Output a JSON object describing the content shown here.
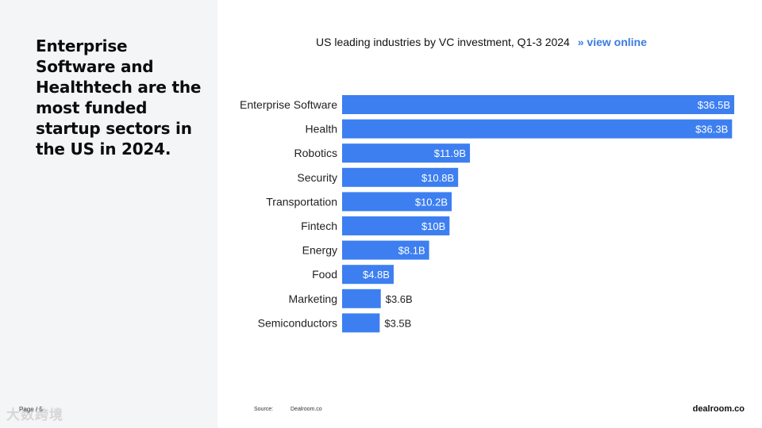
{
  "slide": {
    "headline": "Enterprise Software and Healthtech are the most funded startup sectors in the US in 2024.",
    "page_label": "Page / 5",
    "watermark": "大数跨境",
    "source_label": "Source:",
    "source_value": "Dealroom.co",
    "brand": "dealroom.co"
  },
  "chart_title": {
    "text": "US leading industries by VC investment, Q1-3 2024",
    "link_arrows": "»",
    "link_label": "view online"
  },
  "colors": {
    "bar": "#3d7ff0",
    "panel_bg": "#f4f5f7",
    "link": "#3a7be0"
  },
  "chart_data": {
    "type": "bar",
    "orientation": "horizontal",
    "title": "US leading industries by VC investment, Q1-3 2024",
    "categories": [
      "Enterprise Software",
      "Health",
      "Robotics",
      "Security",
      "Transportation",
      "Fintech",
      "Energy",
      "Food",
      "Marketing",
      "Semiconductors"
    ],
    "values": [
      36.5,
      36.3,
      11.9,
      10.8,
      10.2,
      10,
      8.1,
      4.8,
      3.6,
      3.5
    ],
    "value_labels": [
      "$36.5B",
      "$36.3B",
      "$11.9B",
      "$10.8B",
      "$10.2B",
      "$10B",
      "$8.1B",
      "$4.8B",
      "$3.6B",
      "$3.5B"
    ],
    "unit": "B",
    "xlim": [
      0,
      36.5
    ],
    "grid": false,
    "legend": "none"
  }
}
